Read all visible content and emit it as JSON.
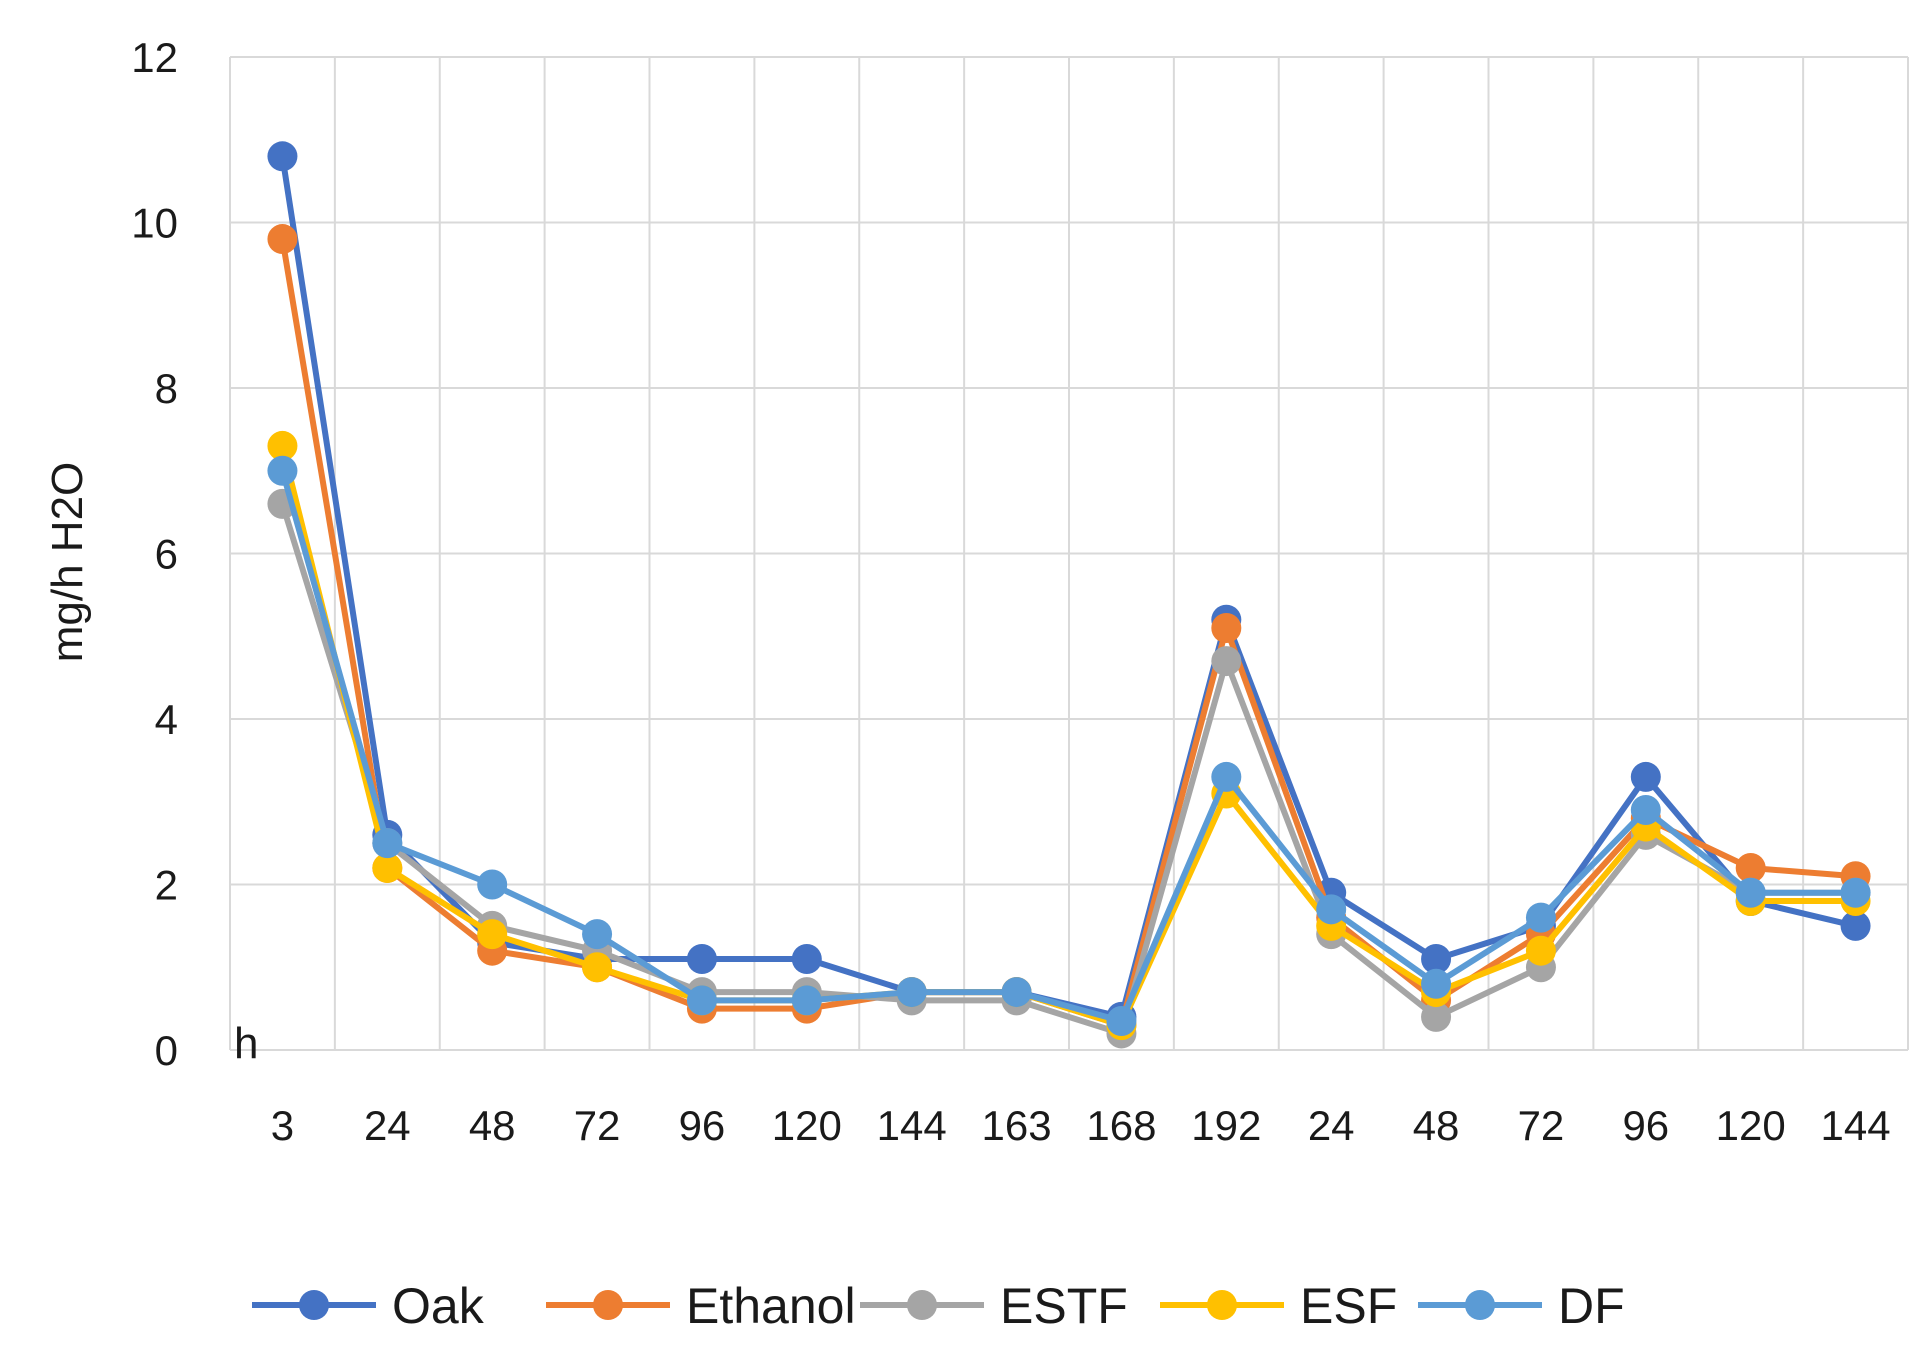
{
  "chart_data": {
    "type": "line",
    "title": "",
    "xlabel": "h",
    "ylabel": "mg/h H2O",
    "ylim": [
      0,
      12
    ],
    "yticks": [
      0,
      2,
      4,
      6,
      8,
      10,
      12
    ],
    "grid": true,
    "legend_position": "bottom",
    "categories": [
      "3",
      "24",
      "48",
      "72",
      "96",
      "120",
      "144",
      "163",
      "168",
      "192",
      "24",
      "48",
      "72",
      "96",
      "120",
      "144"
    ],
    "series": [
      {
        "name": "Oak",
        "color": "#4472C4",
        "values": [
          10.8,
          2.6,
          1.3,
          1.1,
          1.1,
          1.1,
          0.7,
          0.7,
          0.4,
          5.2,
          1.9,
          1.1,
          1.5,
          3.3,
          1.8,
          1.5
        ]
      },
      {
        "name": "Ethanol",
        "color": "#ED7D31",
        "values": [
          9.8,
          2.2,
          1.2,
          1.0,
          0.5,
          0.5,
          0.7,
          0.7,
          0.3,
          5.1,
          1.6,
          0.6,
          1.4,
          2.8,
          2.2,
          2.1
        ]
      },
      {
        "name": "ESTF",
        "color": "#A5A5A5",
        "values": [
          6.6,
          2.5,
          1.5,
          1.2,
          0.7,
          0.7,
          0.6,
          0.6,
          0.2,
          4.7,
          1.4,
          0.4,
          1.0,
          2.6,
          1.9,
          1.9
        ]
      },
      {
        "name": "ESF",
        "color": "#FFC000",
        "values": [
          7.3,
          2.2,
          1.4,
          1.0,
          0.6,
          0.6,
          0.7,
          0.7,
          0.3,
          3.1,
          1.5,
          0.7,
          1.2,
          2.7,
          1.8,
          1.8
        ]
      },
      {
        "name": "DF",
        "color": "#5B9BD5",
        "values": [
          7.0,
          2.5,
          2.0,
          1.4,
          0.6,
          0.6,
          0.7,
          0.7,
          0.35,
          3.3,
          1.7,
          0.8,
          1.6,
          2.9,
          1.9,
          1.9
        ]
      }
    ]
  }
}
